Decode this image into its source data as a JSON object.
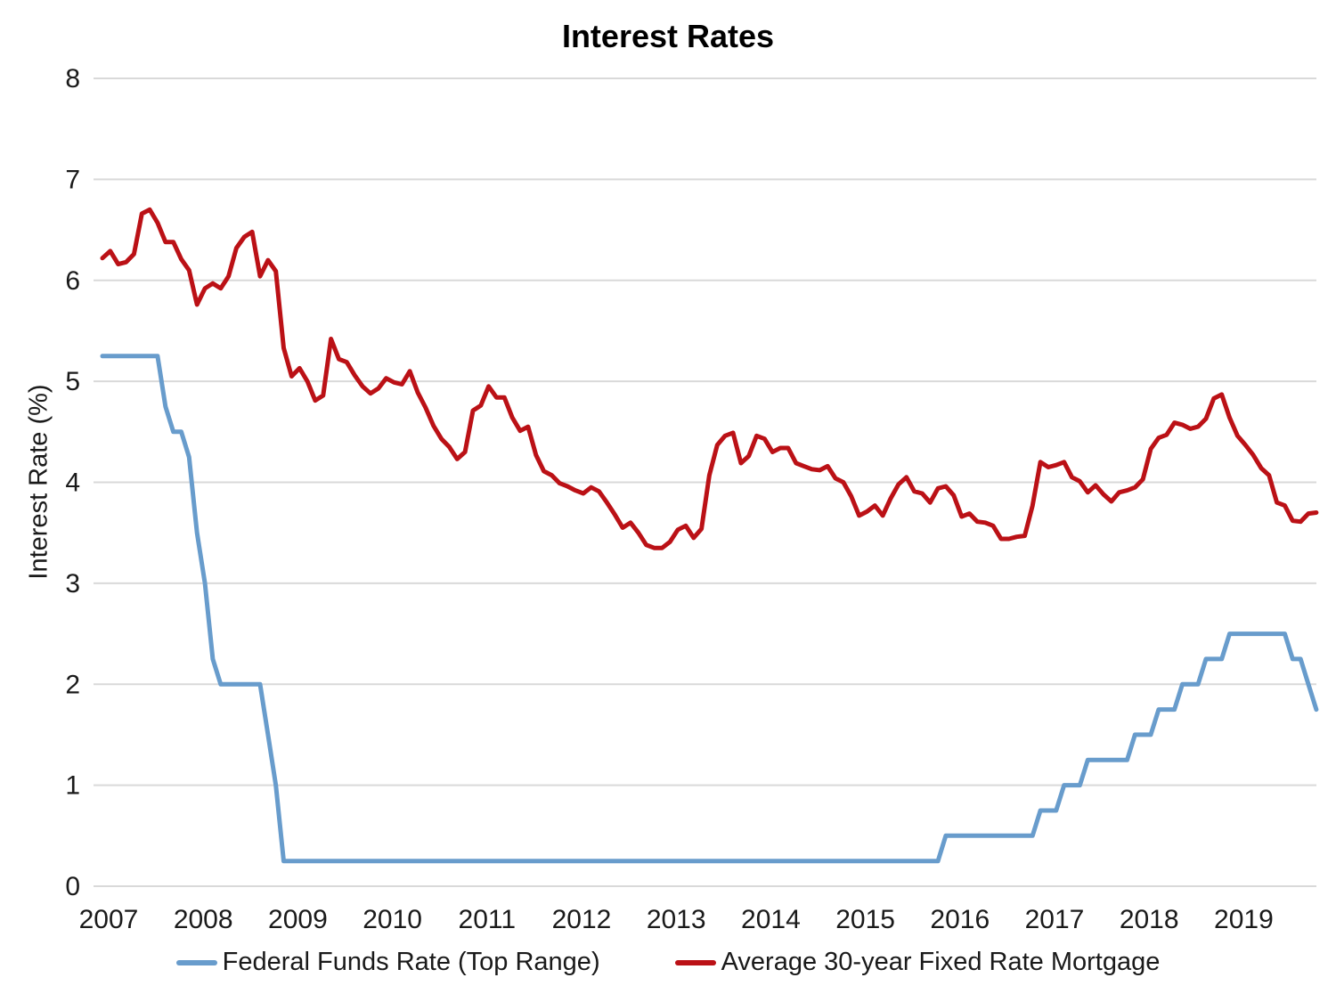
{
  "chart_data": {
    "type": "line",
    "title": "Interest Rates",
    "xlabel": "",
    "ylabel": "Interest Rate (%)",
    "ylim": [
      0,
      8
    ],
    "ytick_step": 1,
    "ytick_labels": [
      "0",
      "1",
      "2",
      "3",
      "4",
      "5",
      "6",
      "7",
      "8"
    ],
    "grid": "horizontal-only",
    "legend_position": "bottom-center",
    "x": {
      "start": "2007-01",
      "end": "2019-11",
      "frequency": "monthly",
      "n_points": 155
    },
    "x_tick_labels": [
      "2007",
      "2008",
      "2009",
      "2010",
      "2011",
      "2012",
      "2013",
      "2014",
      "2015",
      "2016",
      "2017",
      "2018",
      "2019"
    ],
    "series": [
      {
        "name": "Federal Funds Rate (Top Range)",
        "color": "#689CCC",
        "values": [
          5.25,
          5.25,
          5.25,
          5.25,
          5.25,
          5.25,
          5.25,
          5.25,
          4.75,
          4.5,
          4.5,
          4.25,
          3.5,
          3.0,
          2.25,
          2.0,
          2.0,
          2.0,
          2.0,
          2.0,
          2.0,
          1.5,
          1.0,
          0.25,
          0.25,
          0.25,
          0.25,
          0.25,
          0.25,
          0.25,
          0.25,
          0.25,
          0.25,
          0.25,
          0.25,
          0.25,
          0.25,
          0.25,
          0.25,
          0.25,
          0.25,
          0.25,
          0.25,
          0.25,
          0.25,
          0.25,
          0.25,
          0.25,
          0.25,
          0.25,
          0.25,
          0.25,
          0.25,
          0.25,
          0.25,
          0.25,
          0.25,
          0.25,
          0.25,
          0.25,
          0.25,
          0.25,
          0.25,
          0.25,
          0.25,
          0.25,
          0.25,
          0.25,
          0.25,
          0.25,
          0.25,
          0.25,
          0.25,
          0.25,
          0.25,
          0.25,
          0.25,
          0.25,
          0.25,
          0.25,
          0.25,
          0.25,
          0.25,
          0.25,
          0.25,
          0.25,
          0.25,
          0.25,
          0.25,
          0.25,
          0.25,
          0.25,
          0.25,
          0.25,
          0.25,
          0.25,
          0.25,
          0.25,
          0.25,
          0.25,
          0.25,
          0.25,
          0.25,
          0.25,
          0.25,
          0.25,
          0.25,
          0.5,
          0.5,
          0.5,
          0.5,
          0.5,
          0.5,
          0.5,
          0.5,
          0.5,
          0.5,
          0.5,
          0.5,
          0.75,
          0.75,
          0.75,
          1.0,
          1.0,
          1.0,
          1.25,
          1.25,
          1.25,
          1.25,
          1.25,
          1.25,
          1.5,
          1.5,
          1.5,
          1.75,
          1.75,
          1.75,
          2.0,
          2.0,
          2.0,
          2.25,
          2.25,
          2.25,
          2.5,
          2.5,
          2.5,
          2.5,
          2.5,
          2.5,
          2.5,
          2.5,
          2.25,
          2.25,
          2.0,
          1.75
        ]
      },
      {
        "name": "Average 30-year Fixed Rate Mortgage",
        "color": "#BB1116",
        "values": [
          6.22,
          6.29,
          6.16,
          6.18,
          6.26,
          6.66,
          6.7,
          6.57,
          6.38,
          6.38,
          6.21,
          6.1,
          5.76,
          5.92,
          5.97,
          5.92,
          6.04,
          6.32,
          6.43,
          6.48,
          6.04,
          6.2,
          6.09,
          5.33,
          5.05,
          5.13,
          5.0,
          4.81,
          4.86,
          5.42,
          5.22,
          5.19,
          5.06,
          4.95,
          4.88,
          4.93,
          5.03,
          4.99,
          4.97,
          5.1,
          4.89,
          4.74,
          4.56,
          4.43,
          4.35,
          4.23,
          4.3,
          4.71,
          4.76,
          4.95,
          4.84,
          4.84,
          4.64,
          4.51,
          4.55,
          4.27,
          4.11,
          4.07,
          3.99,
          3.96,
          3.92,
          3.89,
          3.95,
          3.91,
          3.8,
          3.68,
          3.55,
          3.6,
          3.5,
          3.38,
          3.35,
          3.35,
          3.41,
          3.53,
          3.57,
          3.45,
          3.54,
          4.07,
          4.37,
          4.46,
          4.49,
          4.19,
          4.26,
          4.46,
          4.43,
          4.3,
          4.34,
          4.34,
          4.19,
          4.16,
          4.13,
          4.12,
          4.16,
          4.04,
          4.0,
          3.86,
          3.67,
          3.71,
          3.77,
          3.67,
          3.84,
          3.98,
          4.05,
          3.91,
          3.89,
          3.8,
          3.94,
          3.96,
          3.87,
          3.66,
          3.69,
          3.61,
          3.6,
          3.57,
          3.44,
          3.44,
          3.46,
          3.47,
          3.77,
          4.2,
          4.15,
          4.17,
          4.2,
          4.05,
          4.01,
          3.9,
          3.97,
          3.88,
          3.81,
          3.9,
          3.92,
          3.95,
          4.03,
          4.33,
          4.44,
          4.47,
          4.59,
          4.57,
          4.53,
          4.55,
          4.63,
          4.83,
          4.87,
          4.64,
          4.46,
          4.37,
          4.27,
          4.14,
          4.07,
          3.8,
          3.77,
          3.62,
          3.61,
          3.69,
          3.7
        ]
      }
    ]
  },
  "colors": {
    "background": "#FFFFFF",
    "gridline": "#D9D9D9",
    "tick_text": "#1A1A1A",
    "title_text": "#000000"
  }
}
